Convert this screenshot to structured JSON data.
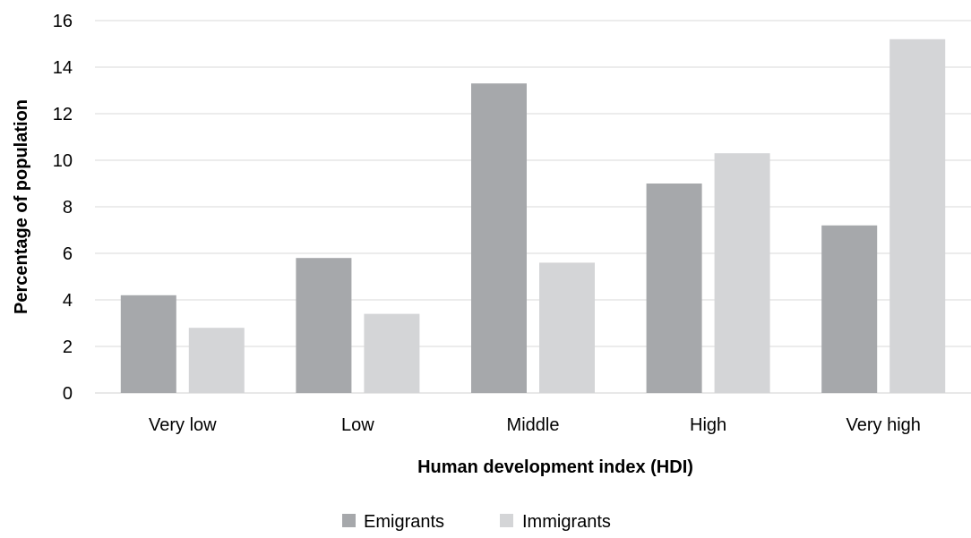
{
  "chart_data": {
    "type": "bar",
    "categories": [
      "Very low",
      "Low",
      "Middle",
      "High",
      "Very high"
    ],
    "series": [
      {
        "name": "Emigrants",
        "values": [
          4.2,
          5.8,
          13.3,
          9.0,
          7.2
        ],
        "color": "#a6a8ab"
      },
      {
        "name": "Immigrants",
        "values": [
          2.8,
          3.4,
          5.6,
          10.3,
          15.2
        ],
        "color": "#d4d5d7"
      }
    ],
    "title": "",
    "xlabel": "Human development index (HDI)",
    "ylabel": "Percentage of population",
    "ylim": [
      0,
      16
    ],
    "yticks": [
      "0",
      "2",
      "4",
      "6",
      "8",
      "10",
      "12",
      "14",
      "16"
    ],
    "grid": true,
    "legend_position": "bottom"
  }
}
